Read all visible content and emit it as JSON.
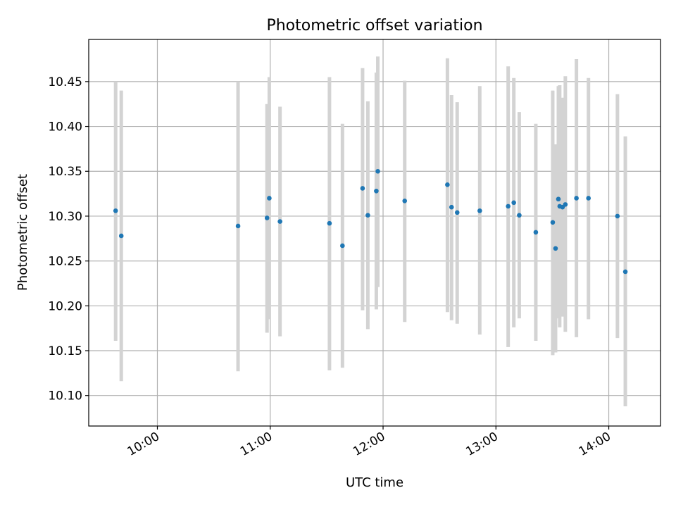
{
  "chart_data": {
    "type": "scatter",
    "title": "Photometric offset variation",
    "xlabel": "UTC time",
    "ylabel": "Photometric offset",
    "x_ticks": [
      "10:00",
      "11:00",
      "12:00",
      "13:00",
      "14:00"
    ],
    "x_tick_values": [
      600,
      660,
      720,
      780,
      840
    ],
    "y_ticks": [
      "10.10",
      "10.15",
      "10.20",
      "10.25",
      "10.30",
      "10.35",
      "10.40",
      "10.45"
    ],
    "y_tick_values": [
      10.1,
      10.15,
      10.2,
      10.25,
      10.3,
      10.35,
      10.4,
      10.45
    ],
    "xlim": [
      563.5,
      867.5
    ],
    "ylim": [
      10.066,
      10.497
    ],
    "grid": true,
    "colors": {
      "point": "#1f77b4",
      "errorbar": "#d3d3d3",
      "grid": "#b0b0b0"
    },
    "series": [
      {
        "points": [
          {
            "x": 577.8,
            "y": 10.306,
            "lo": 10.161,
            "hi": 10.45
          },
          {
            "x": 580.8,
            "y": 10.278,
            "lo": 10.116,
            "hi": 10.44
          },
          {
            "x": 642.9,
            "y": 10.289,
            "lo": 10.127,
            "hi": 10.45
          },
          {
            "x": 658.3,
            "y": 10.298,
            "lo": 10.17,
            "hi": 10.425
          },
          {
            "x": 659.5,
            "y": 10.32,
            "lo": 10.185,
            "hi": 10.455
          },
          {
            "x": 665.2,
            "y": 10.294,
            "lo": 10.166,
            "hi": 10.422
          },
          {
            "x": 691.5,
            "y": 10.292,
            "lo": 10.128,
            "hi": 10.455
          },
          {
            "x": 698.4,
            "y": 10.267,
            "lo": 10.131,
            "hi": 10.403
          },
          {
            "x": 709.1,
            "y": 10.331,
            "lo": 10.195,
            "hi": 10.465
          },
          {
            "x": 711.9,
            "y": 10.301,
            "lo": 10.174,
            "hi": 10.428
          },
          {
            "x": 716.4,
            "y": 10.328,
            "lo": 10.196,
            "hi": 10.46
          },
          {
            "x": 717.2,
            "y": 10.35,
            "lo": 10.221,
            "hi": 10.478
          },
          {
            "x": 731.5,
            "y": 10.317,
            "lo": 10.182,
            "hi": 10.451
          },
          {
            "x": 754.2,
            "y": 10.335,
            "lo": 10.193,
            "hi": 10.476
          },
          {
            "x": 756.4,
            "y": 10.31,
            "lo": 10.184,
            "hi": 10.435
          },
          {
            "x": 759.4,
            "y": 10.304,
            "lo": 10.18,
            "hi": 10.427
          },
          {
            "x": 771.4,
            "y": 10.306,
            "lo": 10.168,
            "hi": 10.445
          },
          {
            "x": 786.5,
            "y": 10.311,
            "lo": 10.154,
            "hi": 10.467
          },
          {
            "x": 789.5,
            "y": 10.315,
            "lo": 10.176,
            "hi": 10.454
          },
          {
            "x": 792.4,
            "y": 10.301,
            "lo": 10.186,
            "hi": 10.416
          },
          {
            "x": 801.2,
            "y": 10.282,
            "lo": 10.161,
            "hi": 10.403
          },
          {
            "x": 810.2,
            "y": 10.293,
            "lo": 10.145,
            "hi": 10.44
          },
          {
            "x": 811.7,
            "y": 10.264,
            "lo": 10.148,
            "hi": 10.38
          },
          {
            "x": 813.2,
            "y": 10.319,
            "lo": 10.186,
            "hi": 10.445
          },
          {
            "x": 813.9,
            "y": 10.311,
            "lo": 10.176,
            "hi": 10.446
          },
          {
            "x": 815.4,
            "y": 10.31,
            "lo": 10.188,
            "hi": 10.432
          },
          {
            "x": 816.9,
            "y": 10.313,
            "lo": 10.171,
            "hi": 10.456
          },
          {
            "x": 822.8,
            "y": 10.32,
            "lo": 10.165,
            "hi": 10.475
          },
          {
            "x": 829.2,
            "y": 10.32,
            "lo": 10.185,
            "hi": 10.454
          },
          {
            "x": 844.6,
            "y": 10.3,
            "lo": 10.164,
            "hi": 10.436
          },
          {
            "x": 848.8,
            "y": 10.238,
            "lo": 10.088,
            "hi": 10.389
          }
        ]
      }
    ]
  }
}
